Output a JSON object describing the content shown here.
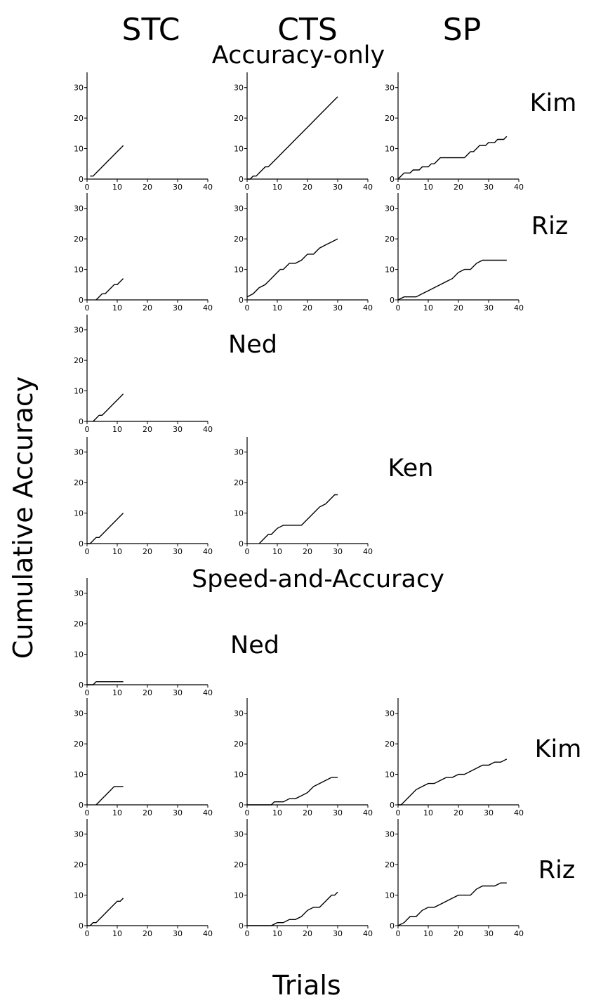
{
  "figure": {
    "column_headers": [
      "STC",
      "CTS",
      "SP"
    ],
    "section_titles": [
      "Accuracy-only",
      "Speed-and-Accuracy"
    ],
    "ylabel": "Cumulative Accuracy",
    "xlabel": "Trials",
    "colors": {
      "line": "#000000",
      "background": "#ffffff"
    }
  },
  "chart_data": [
    {
      "type": "line",
      "section": "Accuracy-only",
      "condition": "STC",
      "subject": "Kim",
      "xlim": [
        0,
        40
      ],
      "ylim": [
        0,
        35
      ],
      "xticks": [
        0,
        10,
        20,
        30,
        40
      ],
      "yticks": [
        0,
        10,
        20,
        30
      ],
      "x": [
        1,
        2,
        3,
        4,
        5,
        6,
        7,
        8,
        9,
        10,
        11,
        12
      ],
      "y": [
        1,
        1,
        2,
        3,
        4,
        5,
        6,
        7,
        8,
        9,
        10,
        11
      ]
    },
    {
      "type": "line",
      "section": "Accuracy-only",
      "condition": "CTS",
      "subject": "Kim",
      "xlim": [
        0,
        40
      ],
      "ylim": [
        0,
        35
      ],
      "xticks": [
        0,
        10,
        20,
        30,
        40
      ],
      "yticks": [
        0,
        10,
        20,
        30
      ],
      "x": [
        0,
        1,
        2,
        3,
        4,
        5,
        6,
        7,
        8,
        10,
        12,
        14,
        16,
        18,
        20,
        22,
        24,
        26,
        28,
        30
      ],
      "y": [
        0,
        0,
        1,
        1,
        2,
        3,
        4,
        4,
        5,
        7,
        9,
        11,
        13,
        15,
        17,
        19,
        21,
        23,
        25,
        27
      ]
    },
    {
      "type": "line",
      "section": "Accuracy-only",
      "condition": "SP",
      "subject": "Kim",
      "xlim": [
        0,
        40
      ],
      "ylim": [
        0,
        35
      ],
      "xticks": [
        0,
        10,
        20,
        30,
        40
      ],
      "yticks": [
        0,
        10,
        20,
        30
      ],
      "x": [
        0,
        2,
        4,
        5,
        7,
        8,
        10,
        11,
        12,
        14,
        16,
        18,
        20,
        21,
        22,
        23,
        24,
        25,
        26,
        27,
        28,
        29,
        30,
        31,
        32,
        33,
        34,
        35,
        36
      ],
      "y": [
        0,
        2,
        2,
        3,
        3,
        4,
        4,
        5,
        5,
        7,
        7,
        7,
        7,
        7,
        7,
        8,
        9,
        9,
        10,
        11,
        11,
        11,
        12,
        12,
        12,
        13,
        13,
        13,
        14
      ]
    },
    {
      "type": "line",
      "section": "Accuracy-only",
      "condition": "STC",
      "subject": "Riz",
      "xlim": [
        0,
        40
      ],
      "ylim": [
        0,
        35
      ],
      "xticks": [
        0,
        10,
        20,
        30,
        40
      ],
      "yticks": [
        0,
        10,
        20,
        30
      ],
      "x": [
        3,
        4,
        5,
        6,
        7,
        8,
        9,
        10,
        11,
        12
      ],
      "y": [
        0,
        1,
        2,
        2,
        3,
        4,
        5,
        5,
        6,
        7
      ]
    },
    {
      "type": "line",
      "section": "Accuracy-only",
      "condition": "CTS",
      "subject": "Riz",
      "xlim": [
        0,
        40
      ],
      "ylim": [
        0,
        35
      ],
      "xticks": [
        0,
        10,
        20,
        30,
        40
      ],
      "yticks": [
        0,
        10,
        20,
        30
      ],
      "x": [
        0,
        2,
        4,
        6,
        8,
        10,
        11,
        12,
        13,
        14,
        16,
        18,
        20,
        22,
        24,
        26,
        28,
        30
      ],
      "y": [
        1,
        2,
        4,
        5,
        7,
        9,
        10,
        10,
        11,
        12,
        12,
        13,
        15,
        15,
        17,
        18,
        19,
        20
      ]
    },
    {
      "type": "line",
      "section": "Accuracy-only",
      "condition": "SP",
      "subject": "Riz",
      "xlim": [
        0,
        40
      ],
      "ylim": [
        0,
        35
      ],
      "xticks": [
        0,
        10,
        20,
        30,
        40
      ],
      "yticks": [
        0,
        10,
        20,
        30
      ],
      "x": [
        0,
        2,
        4,
        6,
        8,
        10,
        12,
        14,
        16,
        18,
        20,
        22,
        24,
        26,
        28,
        30,
        32,
        34,
        36
      ],
      "y": [
        0,
        1,
        1,
        1,
        2,
        3,
        4,
        5,
        6,
        7,
        9,
        10,
        10,
        12,
        13,
        13,
        13,
        13,
        13
      ]
    },
    {
      "type": "line",
      "section": "Accuracy-only",
      "condition": "STC",
      "subject": "Ned",
      "xlim": [
        0,
        40
      ],
      "ylim": [
        0,
        35
      ],
      "xticks": [
        0,
        10,
        20,
        30,
        40
      ],
      "yticks": [
        0,
        10,
        20,
        30
      ],
      "x": [
        2,
        3,
        4,
        5,
        6,
        7,
        8,
        9,
        10,
        11,
        12
      ],
      "y": [
        0,
        1,
        2,
        2,
        3,
        4,
        5,
        6,
        7,
        8,
        9
      ]
    },
    {
      "type": "line",
      "section": "Accuracy-only",
      "condition": "STC",
      "subject": "Ken",
      "xlim": [
        0,
        40
      ],
      "ylim": [
        0,
        35
      ],
      "xticks": [
        0,
        10,
        20,
        30,
        40
      ],
      "yticks": [
        0,
        10,
        20,
        30
      ],
      "x": [
        0,
        1,
        2,
        3,
        4,
        5,
        6,
        7,
        8,
        9,
        10,
        11,
        12
      ],
      "y": [
        0,
        0,
        1,
        2,
        2,
        3,
        4,
        5,
        6,
        7,
        8,
        9,
        10
      ]
    },
    {
      "type": "line",
      "section": "Accuracy-only",
      "condition": "CTS",
      "subject": "Ken",
      "xlim": [
        0,
        40
      ],
      "ylim": [
        0,
        35
      ],
      "xticks": [
        0,
        10,
        20,
        30,
        40
      ],
      "yticks": [
        0,
        10,
        20,
        30
      ],
      "x": [
        4,
        6,
        7,
        8,
        10,
        12,
        14,
        16,
        18,
        20,
        22,
        24,
        26,
        28,
        29,
        30
      ],
      "y": [
        0,
        2,
        3,
        3,
        5,
        6,
        6,
        6,
        6,
        8,
        10,
        12,
        13,
        15,
        16,
        16
      ]
    },
    {
      "type": "line",
      "section": "Speed-and-Accuracy",
      "condition": "STC",
      "subject": "Ned",
      "xlim": [
        0,
        40
      ],
      "ylim": [
        0,
        35
      ],
      "xticks": [
        0,
        10,
        20,
        30,
        40
      ],
      "yticks": [
        0,
        10,
        20,
        30
      ],
      "x": [
        0,
        1,
        2,
        3,
        12
      ],
      "y": [
        0,
        0,
        0,
        1,
        1
      ]
    },
    {
      "type": "line",
      "section": "Speed-and-Accuracy",
      "condition": "STC",
      "subject": "Kim",
      "xlim": [
        0,
        40
      ],
      "ylim": [
        0,
        35
      ],
      "xticks": [
        0,
        10,
        20,
        30,
        40
      ],
      "yticks": [
        0,
        10,
        20,
        30
      ],
      "x": [
        3,
        4,
        5,
        6,
        7,
        8,
        9,
        10,
        11,
        12
      ],
      "y": [
        0,
        1,
        2,
        3,
        4,
        5,
        6,
        6,
        6,
        6
      ]
    },
    {
      "type": "line",
      "section": "Speed-and-Accuracy",
      "condition": "CTS",
      "subject": "Kim",
      "xlim": [
        0,
        40
      ],
      "ylim": [
        0,
        35
      ],
      "xticks": [
        0,
        10,
        20,
        30,
        40
      ],
      "yticks": [
        0,
        10,
        20,
        30
      ],
      "x": [
        0,
        8,
        9,
        12,
        14,
        16,
        18,
        20,
        21,
        22,
        24,
        26,
        28,
        30
      ],
      "y": [
        0,
        0,
        1,
        1,
        2,
        2,
        3,
        4,
        5,
        6,
        7,
        8,
        9,
        9
      ]
    },
    {
      "type": "line",
      "section": "Speed-and-Accuracy",
      "condition": "SP",
      "subject": "Kim",
      "xlim": [
        0,
        40
      ],
      "ylim": [
        0,
        35
      ],
      "xticks": [
        0,
        10,
        20,
        30,
        40
      ],
      "yticks": [
        0,
        10,
        20,
        30
      ],
      "x": [
        0,
        1,
        2,
        4,
        6,
        8,
        10,
        12,
        14,
        16,
        18,
        20,
        22,
        24,
        26,
        28,
        30,
        32,
        34,
        36
      ],
      "y": [
        0,
        0,
        1,
        3,
        5,
        6,
        7,
        7,
        8,
        9,
        9,
        10,
        10,
        11,
        12,
        13,
        13,
        14,
        14,
        15
      ]
    },
    {
      "type": "line",
      "section": "Speed-and-Accuracy",
      "condition": "STC",
      "subject": "Riz",
      "xlim": [
        0,
        40
      ],
      "ylim": [
        0,
        35
      ],
      "xticks": [
        0,
        10,
        20,
        30,
        40
      ],
      "yticks": [
        0,
        10,
        20,
        30
      ],
      "x": [
        0,
        1,
        2,
        3,
        4,
        5,
        6,
        7,
        8,
        9,
        10,
        11,
        12
      ],
      "y": [
        0,
        0,
        1,
        1,
        2,
        3,
        4,
        5,
        6,
        7,
        8,
        8,
        9
      ]
    },
    {
      "type": "line",
      "section": "Speed-and-Accuracy",
      "condition": "CTS",
      "subject": "Riz",
      "xlim": [
        0,
        40
      ],
      "ylim": [
        0,
        35
      ],
      "xticks": [
        0,
        10,
        20,
        30,
        40
      ],
      "yticks": [
        0,
        10,
        20,
        30
      ],
      "x": [
        0,
        8,
        10,
        12,
        14,
        16,
        18,
        20,
        22,
        24,
        26,
        28,
        29,
        30
      ],
      "y": [
        0,
        0,
        1,
        1,
        2,
        2,
        3,
        5,
        6,
        6,
        8,
        10,
        10,
        11
      ]
    },
    {
      "type": "line",
      "section": "Speed-and-Accuracy",
      "condition": "SP",
      "subject": "Riz",
      "xlim": [
        0,
        40
      ],
      "ylim": [
        0,
        35
      ],
      "xticks": [
        0,
        10,
        20,
        30,
        40
      ],
      "yticks": [
        0,
        10,
        20,
        30
      ],
      "x": [
        0,
        2,
        4,
        6,
        8,
        10,
        12,
        14,
        16,
        18,
        20,
        22,
        24,
        26,
        28,
        30,
        32,
        34,
        36
      ],
      "y": [
        0,
        1,
        3,
        3,
        5,
        6,
        6,
        7,
        8,
        9,
        10,
        10,
        10,
        12,
        13,
        13,
        13,
        14,
        14
      ]
    }
  ]
}
